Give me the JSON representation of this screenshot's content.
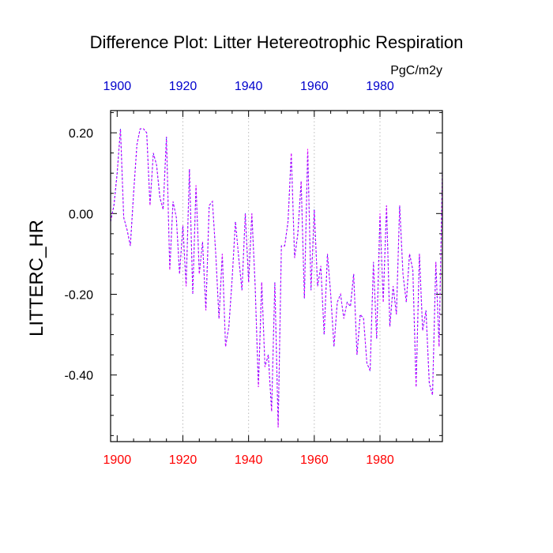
{
  "chart_data": {
    "type": "line",
    "title": "Difference Plot: Litter Hetereotrophic Respiration",
    "units": "PgC/m2y",
    "ylabel": "LITTERC_HR",
    "xlabel": "",
    "xlim": [
      1898,
      1999
    ],
    "ylim": [
      -0.565,
      0.255
    ],
    "x_ticks": [
      1900,
      1920,
      1940,
      1960,
      1980
    ],
    "x_tick_labels": [
      "1900",
      "1920",
      "1940",
      "1960",
      "1980"
    ],
    "y_ticks": [
      0.2,
      0.0,
      -0.2,
      -0.4
    ],
    "y_tick_labels": [
      "0.20",
      "0.00",
      "-0.20",
      "-0.40"
    ],
    "grid": "vertical dotted at x ticks",
    "colors": {
      "top_axis_labels": "#0000cc",
      "bottom_axis_labels": "#ff0000",
      "series_a": "#0000ff",
      "series_b": "#ff00ff"
    },
    "x": [
      1898,
      1899,
      1900,
      1901,
      1902,
      1903,
      1904,
      1905,
      1906,
      1907,
      1908,
      1909,
      1910,
      1911,
      1912,
      1913,
      1914,
      1915,
      1916,
      1917,
      1918,
      1919,
      1920,
      1921,
      1922,
      1923,
      1924,
      1925,
      1926,
      1927,
      1928,
      1929,
      1930,
      1931,
      1932,
      1933,
      1934,
      1935,
      1936,
      1937,
      1938,
      1939,
      1940,
      1941,
      1942,
      1943,
      1944,
      1945,
      1946,
      1947,
      1948,
      1949,
      1950,
      1951,
      1952,
      1953,
      1954,
      1955,
      1956,
      1957,
      1958,
      1959,
      1960,
      1961,
      1962,
      1963,
      1964,
      1965,
      1966,
      1967,
      1968,
      1969,
      1970,
      1971,
      1972,
      1973,
      1974,
      1975,
      1976,
      1977,
      1978,
      1979,
      1980,
      1981,
      1982,
      1983,
      1984,
      1985,
      1986,
      1987,
      1988,
      1989,
      1990,
      1991,
      1992,
      1993,
      1994,
      1995,
      1996,
      1997,
      1998,
      1999
    ],
    "series": [
      {
        "values": [
          -0.02,
          0.02,
          0.1,
          0.21,
          -0.01,
          -0.04,
          -0.08,
          0.05,
          0.17,
          0.21,
          0.21,
          0.2,
          0.02,
          0.15,
          0.12,
          0.04,
          0.01,
          0.19,
          -0.14,
          0.03,
          -0.01,
          -0.15,
          -0.03,
          -0.18,
          0.11,
          -0.2,
          0.07,
          -0.15,
          -0.07,
          -0.24,
          0.02,
          0.03,
          -0.1,
          -0.26,
          -0.1,
          -0.33,
          -0.28,
          -0.16,
          -0.02,
          -0.11,
          -0.19,
          0.0,
          -0.17,
          -0.0,
          -0.18,
          -0.43,
          -0.17,
          -0.38,
          -0.35,
          -0.49,
          -0.17,
          -0.53,
          -0.08,
          -0.08,
          -0.02,
          0.15,
          -0.11,
          -0.05,
          0.08,
          -0.21,
          0.16,
          -0.19,
          0.01,
          -0.18,
          -0.13,
          -0.3,
          -0.1,
          -0.2,
          -0.33,
          -0.22,
          -0.2,
          -0.26,
          -0.22,
          -0.23,
          -0.15,
          -0.35,
          -0.25,
          -0.26,
          -0.37,
          -0.39,
          -0.12,
          -0.31,
          0.0,
          -0.22,
          0.02,
          -0.28,
          -0.18,
          -0.25,
          0.02,
          -0.15,
          -0.22,
          -0.1,
          -0.14,
          -0.43,
          -0.1,
          -0.29,
          -0.24,
          -0.42,
          -0.45,
          -0.12,
          -0.33,
          0.11
        ]
      },
      {
        "values": [
          -0.02,
          0.02,
          0.1,
          0.21,
          -0.01,
          -0.04,
          -0.08,
          0.05,
          0.17,
          0.21,
          0.21,
          0.2,
          0.02,
          0.15,
          0.12,
          0.04,
          0.01,
          0.19,
          -0.14,
          0.03,
          -0.01,
          -0.15,
          -0.03,
          -0.18,
          0.11,
          -0.2,
          0.07,
          -0.15,
          -0.07,
          -0.24,
          0.02,
          0.03,
          -0.1,
          -0.26,
          -0.1,
          -0.33,
          -0.28,
          -0.16,
          -0.02,
          -0.11,
          -0.19,
          0.0,
          -0.17,
          -0.0,
          -0.18,
          -0.43,
          -0.17,
          -0.38,
          -0.35,
          -0.49,
          -0.17,
          -0.53,
          -0.08,
          -0.08,
          -0.02,
          0.15,
          -0.11,
          -0.05,
          0.08,
          -0.21,
          0.16,
          -0.19,
          0.01,
          -0.18,
          -0.13,
          -0.3,
          -0.1,
          -0.2,
          -0.33,
          -0.22,
          -0.2,
          -0.26,
          -0.22,
          -0.23,
          -0.15,
          -0.35,
          -0.25,
          -0.26,
          -0.37,
          -0.39,
          -0.12,
          -0.31,
          0.0,
          -0.22,
          0.02,
          -0.28,
          -0.18,
          -0.25,
          0.02,
          -0.15,
          -0.22,
          -0.1,
          -0.14,
          -0.43,
          -0.1,
          -0.29,
          -0.24,
          -0.42,
          -0.45,
          -0.12,
          -0.33,
          0.11
        ]
      }
    ]
  }
}
